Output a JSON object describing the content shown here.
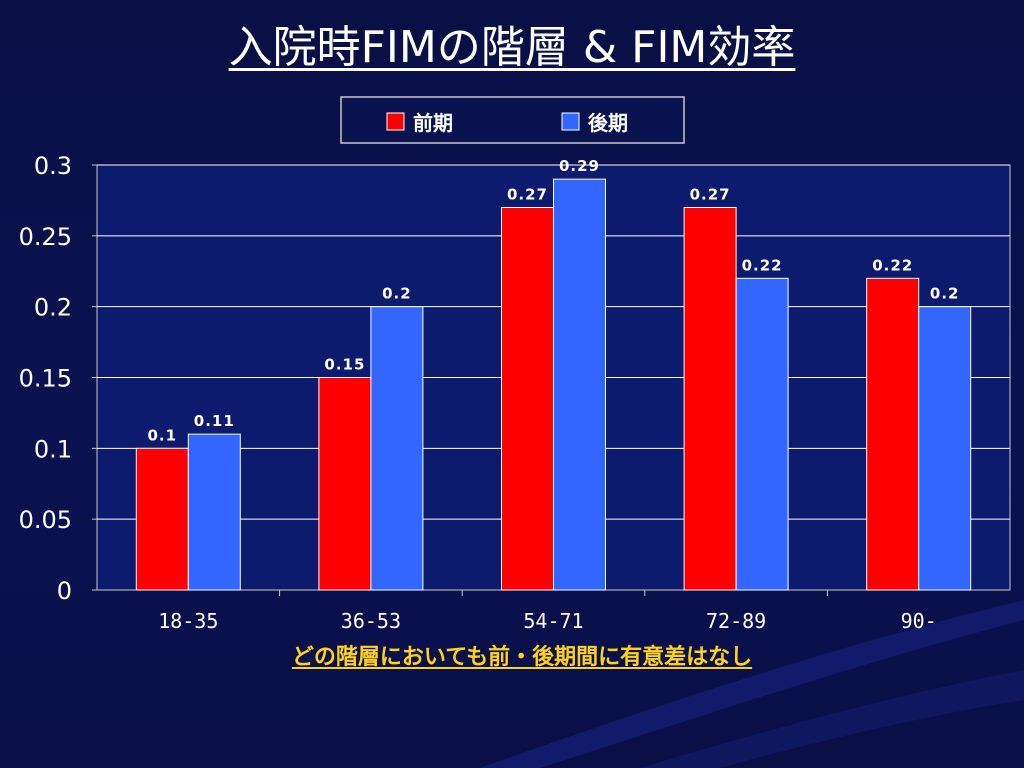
{
  "slide": {
    "title": "入院時FIMの階層 & FIM効率",
    "footnote": "どの階層においても前・後期間に有意差はなし"
  },
  "chart_data": {
    "type": "bar",
    "title": "",
    "xlabel": "",
    "ylabel": "",
    "categories": [
      "18-35",
      "36-53",
      "54-71",
      "72-89",
      "90-"
    ],
    "series": [
      {
        "name": "前期",
        "color": "#ff0000",
        "values": [
          0.1,
          0.15,
          0.27,
          0.27,
          0.22
        ],
        "labels": [
          "0.1",
          "0.15",
          "0.27",
          "0.27",
          "0.22"
        ]
      },
      {
        "name": "後期",
        "color": "#3366ff",
        "values": [
          0.11,
          0.2,
          0.29,
          0.22,
          0.2
        ],
        "labels": [
          "0.11",
          "0.2",
          "0.29",
          "0.22",
          "0.2"
        ]
      }
    ],
    "ylim": [
      0,
      0.3
    ],
    "yticks": [
      0,
      0.05,
      0.1,
      0.15,
      0.2,
      0.25,
      0.3
    ],
    "ytick_labels": [
      "0",
      "0.05",
      "0.1",
      "0.15",
      "0.2",
      "0.25",
      "0.3"
    ],
    "grid": true,
    "legend": "top-center",
    "colors": {
      "background": "#0b1250",
      "plot_background": "#0d1b6e",
      "gridline": "#ffffff",
      "text": "#ffffff",
      "footnote": "#ffd21a"
    }
  }
}
